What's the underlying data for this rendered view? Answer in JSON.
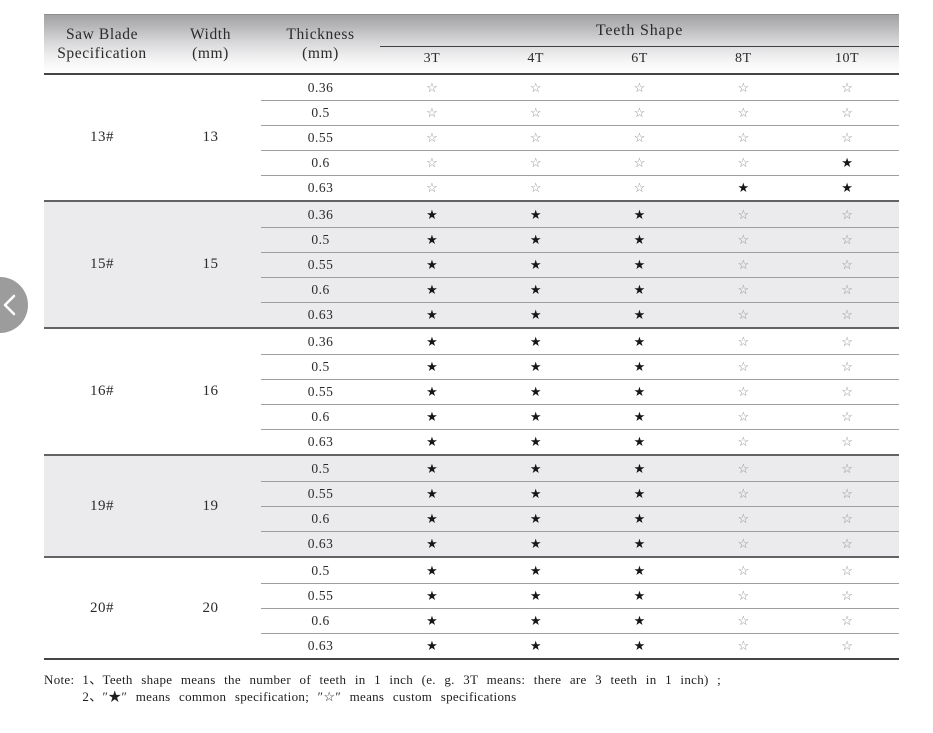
{
  "header": {
    "col1_line1": "Saw Blade",
    "col1_line2": "Specification",
    "col2_line1": "Width",
    "col2_line2": "(mm)",
    "col3_line1": "Thickness",
    "col3_line2": "(mm)",
    "teeth_title": "Teeth Shape",
    "teeth_columns": [
      "3T",
      "4T",
      "6T",
      "8T",
      "10T"
    ]
  },
  "groups": [
    {
      "spec": "13#",
      "width": "13",
      "shaded": false,
      "rows": [
        {
          "thickness": "0.36",
          "stars": [
            0,
            0,
            0,
            0,
            0
          ]
        },
        {
          "thickness": "0.5",
          "stars": [
            0,
            0,
            0,
            0,
            0
          ]
        },
        {
          "thickness": "0.55",
          "stars": [
            0,
            0,
            0,
            0,
            0
          ]
        },
        {
          "thickness": "0.6",
          "stars": [
            0,
            0,
            0,
            0,
            1
          ]
        },
        {
          "thickness": "0.63",
          "stars": [
            0,
            0,
            0,
            1,
            1
          ]
        }
      ]
    },
    {
      "spec": "15#",
      "width": "15",
      "shaded": true,
      "rows": [
        {
          "thickness": "0.36",
          "stars": [
            1,
            1,
            1,
            0,
            0
          ]
        },
        {
          "thickness": "0.5",
          "stars": [
            1,
            1,
            1,
            0,
            0
          ]
        },
        {
          "thickness": "0.55",
          "stars": [
            1,
            1,
            1,
            0,
            0
          ]
        },
        {
          "thickness": "0.6",
          "stars": [
            1,
            1,
            1,
            0,
            0
          ]
        },
        {
          "thickness": "0.63",
          "stars": [
            1,
            1,
            1,
            0,
            0
          ]
        }
      ]
    },
    {
      "spec": "16#",
      "width": "16",
      "shaded": false,
      "rows": [
        {
          "thickness": "0.36",
          "stars": [
            1,
            1,
            1,
            0,
            0
          ]
        },
        {
          "thickness": "0.5",
          "stars": [
            1,
            1,
            1,
            0,
            0
          ]
        },
        {
          "thickness": "0.55",
          "stars": [
            1,
            1,
            1,
            0,
            0
          ]
        },
        {
          "thickness": "0.6",
          "stars": [
            1,
            1,
            1,
            0,
            0
          ]
        },
        {
          "thickness": "0.63",
          "stars": [
            1,
            1,
            1,
            0,
            0
          ]
        }
      ]
    },
    {
      "spec": "19#",
      "width": "19",
      "shaded": true,
      "rows": [
        {
          "thickness": "0.5",
          "stars": [
            1,
            1,
            1,
            0,
            0
          ]
        },
        {
          "thickness": "0.55",
          "stars": [
            1,
            1,
            1,
            0,
            0
          ]
        },
        {
          "thickness": "0.6",
          "stars": [
            1,
            1,
            1,
            0,
            0
          ]
        },
        {
          "thickness": "0.63",
          "stars": [
            1,
            1,
            1,
            0,
            0
          ]
        }
      ]
    },
    {
      "spec": "20#",
      "width": "20",
      "shaded": false,
      "rows": [
        {
          "thickness": "0.5",
          "stars": [
            1,
            1,
            1,
            0,
            0
          ]
        },
        {
          "thickness": "0.55",
          "stars": [
            1,
            1,
            1,
            0,
            0
          ]
        },
        {
          "thickness": "0.6",
          "stars": [
            1,
            1,
            1,
            0,
            0
          ]
        },
        {
          "thickness": "0.63",
          "stars": [
            1,
            1,
            1,
            0,
            0
          ]
        }
      ]
    }
  ],
  "symbols": {
    "common": "★",
    "custom": "☆"
  },
  "note": {
    "label": "Note:",
    "line1": "1、Teeth shape means the number of teeth in 1 inch (e. g.  3T  means:  there are 3 teeth in 1 inch) ;",
    "line2": "2、″★″ means common specification;  ″☆″ means custom specifications"
  },
  "colors": {
    "shaded_group_bg": "#ebebed",
    "filled_star": "#161616",
    "hollow_star": "#8f8f8f",
    "header_gradient_top": "#a2a2a4",
    "nav_circle": "#9c9c9c"
  }
}
